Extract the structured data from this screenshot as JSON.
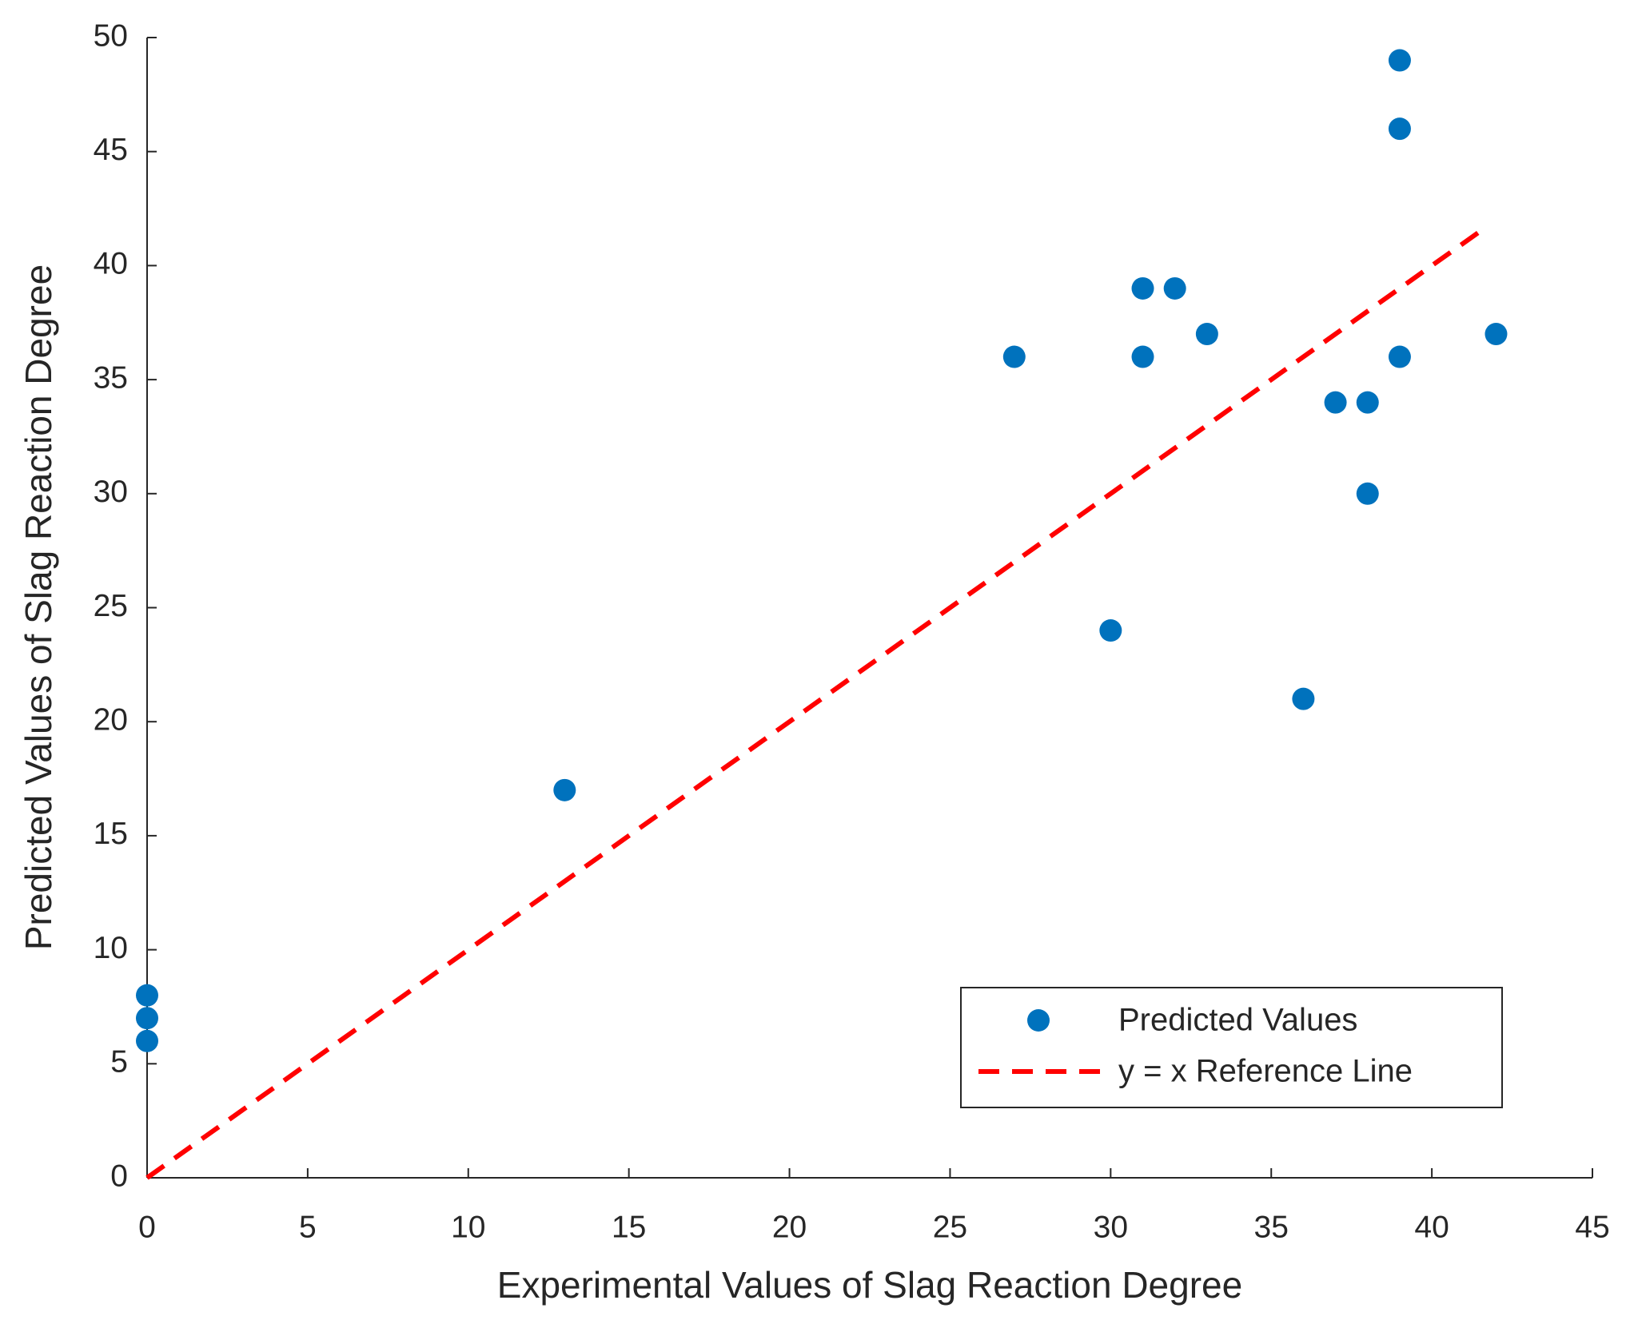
{
  "chart_data": {
    "type": "scatter",
    "xlabel": "Experimental Values of Slag Reaction Degree",
    "ylabel": "Predicted Values of Slag Reaction Degree",
    "xlim": [
      0,
      45
    ],
    "xticks": [
      0,
      5,
      10,
      15,
      20,
      25,
      30,
      35,
      40,
      45
    ],
    "ylim": [
      0,
      50
    ],
    "yticks": [
      0,
      5,
      10,
      15,
      20,
      25,
      30,
      35,
      40,
      45,
      50
    ],
    "legend": "lower right",
    "series": [
      {
        "name": "Predicted Values",
        "color": "#0072bd",
        "mode": "markers",
        "x": [
          0,
          0,
          0,
          13,
          27,
          30,
          31,
          31,
          32,
          33,
          36,
          37,
          38,
          38,
          39,
          39,
          39,
          42
        ],
        "values": [
          8,
          7,
          6,
          17,
          36,
          24,
          39,
          36,
          39,
          37,
          21,
          34,
          34,
          30,
          49,
          46,
          36,
          37
        ]
      },
      {
        "name": "y = x Reference Line",
        "color": "#ff0000",
        "mode": "dashed-line",
        "x": [
          0,
          41.5
        ],
        "values": [
          0,
          41.5
        ]
      }
    ]
  }
}
